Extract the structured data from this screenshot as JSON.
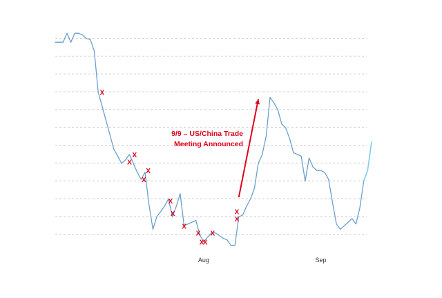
{
  "chart_data": {
    "type": "line",
    "title": "",
    "xlabel": "",
    "ylabel": "",
    "x_ticks": [
      {
        "label": "Aug",
        "x": 38
      },
      {
        "label": "Sep",
        "x": 68
      }
    ],
    "xlim": [
      0,
      81
    ],
    "ylim": [
      0,
      12
    ],
    "grid": "horizontal dashed",
    "y_gridlines": [
      1,
      2,
      3,
      4,
      5,
      6,
      7,
      8,
      9,
      10,
      11,
      12
    ],
    "series": [
      {
        "color": "#6a9fcc",
        "x": [
          0,
          2,
          3,
          4,
          5,
          6,
          7,
          8,
          9,
          10,
          11,
          12,
          13,
          14,
          15,
          16,
          17,
          18,
          19,
          20,
          21,
          22,
          23,
          24,
          25,
          26,
          27,
          28,
          29,
          30,
          31,
          32,
          33,
          34,
          35,
          36,
          37,
          38,
          39,
          40,
          41,
          42,
          43,
          44,
          45,
          46,
          47,
          48,
          49,
          50,
          51,
          52,
          53,
          54,
          55,
          56,
          57,
          58,
          59,
          60,
          61,
          62,
          63,
          64,
          65,
          66,
          67,
          68,
          69,
          70,
          71,
          72,
          73,
          74,
          75,
          76,
          77,
          78,
          79,
          80,
          81
        ],
        "y": [
          11.8,
          11.8,
          12.3,
          11.8,
          12.3,
          12.3,
          12.2,
          12.0,
          11.95,
          11.3,
          9.0,
          8.2,
          7.4,
          6.6,
          5.8,
          5.4,
          5.0,
          5.2,
          5.5,
          5.0,
          4.5,
          4.1,
          4.5,
          2.7,
          1.3,
          2.0,
          2.3,
          2.6,
          3.0,
          2.0,
          2.6,
          3.3,
          1.5,
          1.6,
          1.7,
          1.8,
          1.0,
          0.6,
          0.85,
          1.1,
          1.1,
          0.95,
          0.8,
          0.7,
          0.4,
          0.4,
          2.0,
          2.1,
          2.6,
          3.0,
          3.6,
          5.0,
          5.5,
          6.5,
          8.7,
          8.4,
          8.0,
          7.2,
          7.0,
          6.4,
          5.6,
          5.5,
          5.4,
          4.0,
          5.3,
          4.8,
          4.6,
          4.6,
          4.5,
          4.1,
          2.8,
          1.6,
          1.3,
          1.5,
          1.7,
          1.9,
          1.6,
          2.5,
          4.0,
          4.6,
          6.2
        ]
      }
    ],
    "markers": [
      {
        "label": "X",
        "x": 12,
        "y": 9.0
      },
      {
        "label": "X",
        "x": 19,
        "y": 5.1
      },
      {
        "label": "X",
        "x": 20.3,
        "y": 5.5
      },
      {
        "label": "X",
        "x": 22.7,
        "y": 4.1
      },
      {
        "label": "X",
        "x": 23.8,
        "y": 4.6
      },
      {
        "label": "X",
        "x": 29.5,
        "y": 2.9
      },
      {
        "label": "X",
        "x": 30.1,
        "y": 2.2
      },
      {
        "label": "X",
        "x": 33,
        "y": 1.5
      },
      {
        "label": "X",
        "x": 36.6,
        "y": 1.1
      },
      {
        "label": "X",
        "x": 37.5,
        "y": 0.6
      },
      {
        "label": "X",
        "x": 38.4,
        "y": 0.6
      },
      {
        "label": "X",
        "x": 40.3,
        "y": 1.1
      },
      {
        "label": "X",
        "x": 46.5,
        "y": 2.3
      },
      {
        "label": "X",
        "x": 46.5,
        "y": 1.9
      }
    ],
    "annotations": [
      {
        "lines": [
          "9/9 – US/China Trade",
          "Meeting Announced"
        ],
        "color": "#e0001b"
      }
    ],
    "arrow": {
      "from": [
        47,
        3.1
      ],
      "to": [
        52,
        8.6
      ],
      "color": "#e0001b"
    }
  }
}
